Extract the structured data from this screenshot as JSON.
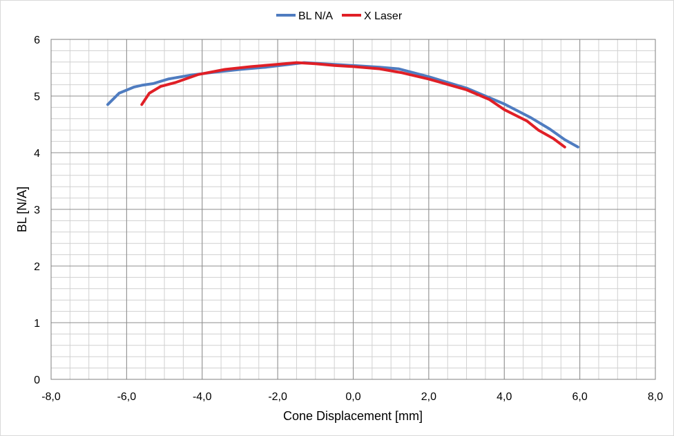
{
  "chart_data": {
    "type": "line",
    "title": "",
    "xlabel": "Cone Displacement [mm]",
    "ylabel": "BL [N/A]",
    "xlim": [
      -8,
      8
    ],
    "ylim": [
      0,
      6
    ],
    "x_ticks": [
      -8,
      -6,
      -4,
      -2,
      0,
      2,
      4,
      6,
      8
    ],
    "x_tick_labels": [
      "-8,0",
      "-6,0",
      "-4,0",
      "-2,0",
      "0,0",
      "2,0",
      "4,0",
      "6,0",
      "8,0"
    ],
    "y_ticks": [
      0,
      1,
      2,
      3,
      4,
      5,
      6
    ],
    "y_tick_labels": [
      "0",
      "1",
      "2",
      "3",
      "4",
      "5",
      "6"
    ],
    "x_minor_step": 0.5,
    "y_minor_step": 0.2,
    "grid": true,
    "legend_position": "top-center",
    "series": [
      {
        "name": "BL N/A",
        "color": "#4F7CC0",
        "x": [
          -6.5,
          -6.2,
          -5.8,
          -5.6,
          -5.3,
          -4.9,
          -4.3,
          -3.7,
          -3.0,
          -2.3,
          -1.8,
          -1.3,
          -0.8,
          -0.3,
          0.2,
          0.7,
          1.2,
          2.0,
          3.0,
          3.5,
          4.0,
          4.7,
          5.2,
          5.6,
          5.95
        ],
        "y": [
          4.85,
          5.05,
          5.16,
          5.19,
          5.22,
          5.3,
          5.37,
          5.42,
          5.47,
          5.51,
          5.55,
          5.59,
          5.57,
          5.55,
          5.53,
          5.51,
          5.48,
          5.34,
          5.14,
          5.0,
          4.86,
          4.62,
          4.42,
          4.23,
          4.1
        ]
      },
      {
        "name": "X Laser",
        "color": "#E01F26",
        "x": [
          -5.6,
          -5.4,
          -5.1,
          -4.7,
          -4.1,
          -3.4,
          -2.7,
          -2.0,
          -1.5,
          -1.0,
          -0.5,
          0.0,
          0.7,
          1.3,
          2.0,
          3.0,
          3.6,
          4.0,
          4.6,
          4.9,
          5.3,
          5.6
        ],
        "y": [
          4.85,
          5.05,
          5.17,
          5.24,
          5.38,
          5.47,
          5.52,
          5.56,
          5.59,
          5.57,
          5.54,
          5.52,
          5.48,
          5.41,
          5.3,
          5.11,
          4.94,
          4.76,
          4.56,
          4.4,
          4.25,
          4.1
        ]
      }
    ]
  }
}
